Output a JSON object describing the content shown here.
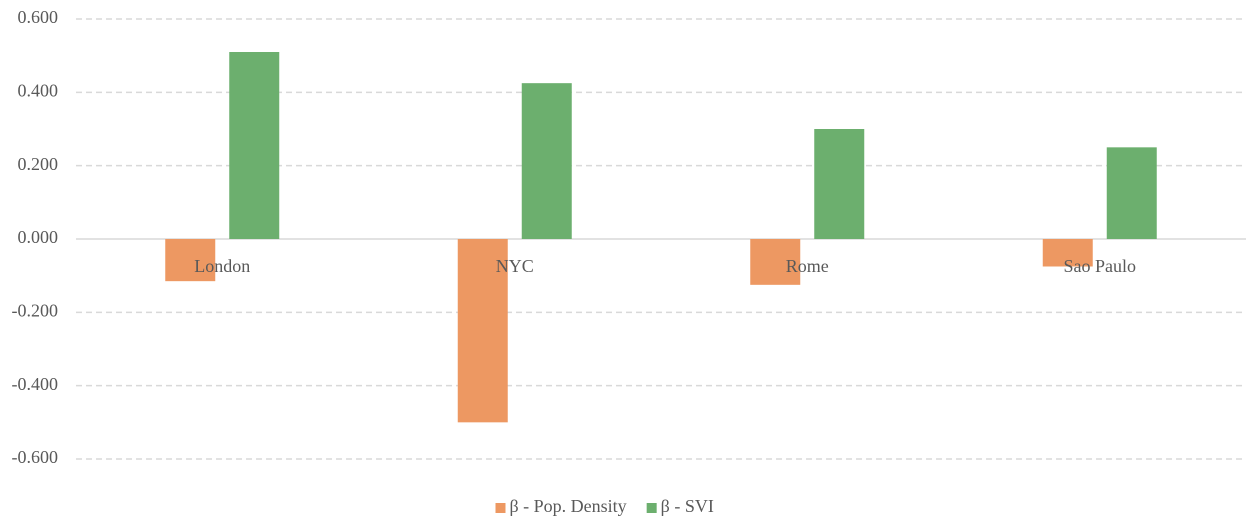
{
  "chart_data": {
    "type": "bar",
    "categories": [
      "London",
      "NYC",
      "Rome",
      "Sao Paulo"
    ],
    "series": [
      {
        "name": "β - Pop. Density",
        "color": "#ed9862",
        "values": [
          -0.115,
          -0.5,
          -0.125,
          -0.075
        ]
      },
      {
        "name": "β - SVI",
        "color": "#6caf6e",
        "values": [
          0.51,
          0.425,
          0.3,
          0.25
        ]
      }
    ],
    "ylim": [
      -0.6,
      0.6
    ],
    "yticks": [
      {
        "value": -0.6,
        "label": "-0.600"
      },
      {
        "value": -0.4,
        "label": "-0.400"
      },
      {
        "value": -0.2,
        "label": "-0.200"
      },
      {
        "value": 0,
        "label": "0.000"
      },
      {
        "value": 0.2,
        "label": "0.200"
      },
      {
        "value": 0.4,
        "label": "0.400"
      },
      {
        "value": 0.6,
        "label": "0.600"
      }
    ],
    "grid": true,
    "legend": "bottom"
  }
}
